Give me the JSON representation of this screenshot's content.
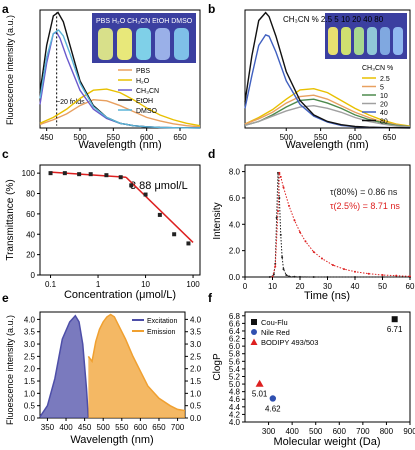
{
  "panels": {
    "a": {
      "letter": "a",
      "ylabel": "Fluoescence intensity (a.u.)",
      "xlabel": "Wavelength (nm)",
      "xticks": [
        "450",
        "500",
        "550",
        "600",
        "650"
      ],
      "inset": "PBS H₂O CH₃CN EtOH DMSO",
      "annotation": "~20 folds"
    },
    "b": {
      "letter": "b",
      "xlabel": "Wavelength (nm)",
      "xticks": [
        "500",
        "550",
        "600",
        "650"
      ],
      "inset": "CH₃CN %  2.5  5  10  20  40  80",
      "legend_title": "CH₃CN %"
    },
    "c": {
      "letter": "c",
      "ylabel": "Transmittance (%)",
      "xlabel": "Concentration (μmol/L)",
      "yticks": [
        "0",
        "20",
        "40",
        "60",
        "80",
        "100"
      ],
      "xticks": [
        "0.1",
        "1",
        "10",
        "100"
      ],
      "annotation": "3.88 μmol/L"
    },
    "d": {
      "letter": "d",
      "ylabel": "Intensity",
      "xlabel": "Time (ns)",
      "yticks": [
        "0.0",
        "2.0",
        "4.0",
        "6.0",
        "8.0"
      ],
      "xticks": [
        "0",
        "10",
        "20",
        "30",
        "40",
        "50",
        "60"
      ],
      "ann1": "τ(80%) = 0.86 ns",
      "ann2": "τ(2.5%) = 8.71 ns"
    },
    "e": {
      "letter": "e",
      "ylabel": "Fluoescence intensity (a.u.)",
      "xlabel": "Wavelength (nm)",
      "yticks": [
        "0.0",
        "0.5",
        "1.0",
        "1.5",
        "2.0",
        "2.5",
        "3.0",
        "3.5",
        "4.0"
      ],
      "xticks": [
        "350",
        "400",
        "450",
        "500",
        "550",
        "600",
        "650",
        "700"
      ]
    },
    "f": {
      "letter": "f",
      "ylabel": "ClogP",
      "xlabel": "Molecular weight (Da)",
      "yticks": [
        "4.0",
        "4.2",
        "4.4",
        "4.6",
        "4.8",
        "5.0",
        "5.2",
        "5.4",
        "5.6",
        "5.8",
        "6.0",
        "6.2",
        "6.4",
        "6.6",
        "6.8"
      ],
      "xticks": [
        "300",
        "400",
        "500",
        "600",
        "700",
        "800",
        "900"
      ]
    }
  },
  "chart_data": [
    {
      "panel": "a",
      "type": "line",
      "xlim": [
        440,
        680
      ],
      "ylim": [
        0,
        10
      ],
      "series": [
        {
          "name": "PBS",
          "color": "#e8a060",
          "x": [
            440,
            460,
            480,
            500,
            520,
            540,
            560,
            580,
            600,
            620,
            640,
            660,
            680
          ],
          "y": [
            0.3,
            0.7,
            1.2,
            1.9,
            2.4,
            2.3,
            1.9,
            1.4,
            0.9,
            0.6,
            0.35,
            0.2,
            0.1
          ]
        },
        {
          "name": "H₂O",
          "color": "#e8c000",
          "x": [
            440,
            460,
            480,
            500,
            520,
            540,
            560,
            580,
            600,
            620,
            640,
            660,
            680
          ],
          "y": [
            0.4,
            0.9,
            1.6,
            2.5,
            3.2,
            3.3,
            3.0,
            2.4,
            1.7,
            1.1,
            0.7,
            0.4,
            0.2
          ]
        },
        {
          "name": "CH₃CN",
          "color": "#6a5acd",
          "x": [
            440,
            450,
            460,
            465,
            470,
            480,
            500,
            520,
            540,
            560,
            580,
            600,
            620,
            640,
            660,
            680
          ],
          "y": [
            2.0,
            5.5,
            8.0,
            8.1,
            7.6,
            6.0,
            3.2,
            1.6,
            0.8,
            0.4,
            0.2,
            0.1,
            0.05,
            0.03,
            0.02,
            0.01
          ]
        },
        {
          "name": "EtOH",
          "color": "#111111",
          "x": [
            440,
            450,
            460,
            467,
            475,
            485,
            500,
            520,
            540,
            560,
            580,
            600,
            620,
            640,
            660,
            680
          ],
          "y": [
            3.0,
            7.0,
            9.5,
            9.8,
            9.0,
            7.0,
            4.0,
            1.9,
            0.9,
            0.4,
            0.2,
            0.1,
            0.05,
            0.03,
            0.02,
            0.01
          ]
        },
        {
          "name": "DMSO",
          "color": "#5ab4d8",
          "x": [
            440,
            450,
            460,
            468,
            475,
            485,
            500,
            520,
            540,
            560,
            580,
            600,
            620,
            640,
            660,
            680
          ],
          "y": [
            2.5,
            6.0,
            8.0,
            8.3,
            7.8,
            6.3,
            3.8,
            1.8,
            0.9,
            0.4,
            0.2,
            0.1,
            0.05,
            0.03,
            0.02,
            0.01
          ]
        }
      ]
    },
    {
      "panel": "b",
      "type": "line",
      "xlim": [
        440,
        680
      ],
      "ylim": [
        0,
        9
      ],
      "series": [
        {
          "name": "2.5",
          "color": "#e8c000",
          "x": [
            440,
            460,
            480,
            500,
            520,
            540,
            560,
            580,
            600,
            620,
            640,
            660,
            680
          ],
          "y": [
            0.3,
            0.8,
            1.4,
            2.2,
            2.9,
            3.0,
            2.7,
            2.1,
            1.5,
            1.0,
            0.6,
            0.3,
            0.15
          ]
        },
        {
          "name": "5",
          "color": "#e8a060",
          "x": [
            440,
            460,
            480,
            500,
            520,
            540,
            560,
            580,
            600,
            620,
            640,
            660,
            680
          ],
          "y": [
            0.3,
            0.7,
            1.2,
            1.9,
            2.4,
            2.5,
            2.2,
            1.7,
            1.2,
            0.8,
            0.45,
            0.25,
            0.1
          ]
        },
        {
          "name": "10",
          "color": "#4d8a4d",
          "x": [
            440,
            460,
            480,
            500,
            520,
            540,
            560,
            580,
            600,
            620,
            640,
            660,
            680
          ],
          "y": [
            0.2,
            0.5,
            1.0,
            1.6,
            2.1,
            2.2,
            1.9,
            1.5,
            1.0,
            0.65,
            0.4,
            0.2,
            0.1
          ]
        },
        {
          "name": "20",
          "color": "#a0a0a0",
          "x": [
            440,
            460,
            480,
            500,
            520,
            540,
            560,
            580,
            600,
            620,
            640,
            660,
            680
          ],
          "y": [
            0.2,
            0.5,
            0.9,
            1.3,
            1.6,
            1.7,
            1.5,
            1.2,
            0.8,
            0.5,
            0.3,
            0.15,
            0.08
          ]
        },
        {
          "name": "40",
          "color": "#4060c0",
          "x": [
            440,
            450,
            460,
            470,
            475,
            485,
            500,
            520,
            540,
            560,
            580,
            600,
            620,
            640,
            660,
            680
          ],
          "y": [
            1.5,
            4.0,
            6.3,
            7.1,
            7.0,
            5.8,
            3.6,
            1.8,
            0.9,
            0.45,
            0.2,
            0.1,
            0.05,
            0.03,
            0.02,
            0.01
          ]
        },
        {
          "name": "80",
          "color": "#111111",
          "x": [
            440,
            450,
            460,
            470,
            475,
            485,
            500,
            520,
            540,
            560,
            580,
            600,
            620,
            640,
            660,
            680
          ],
          "y": [
            2.0,
            5.5,
            8.2,
            8.8,
            8.5,
            7.0,
            4.3,
            2.1,
            1.0,
            0.5,
            0.25,
            0.12,
            0.06,
            0.03,
            0.02,
            0.01
          ]
        }
      ]
    },
    {
      "panel": "c",
      "type": "scatter",
      "xscale": "log",
      "xlim": [
        0.06,
        140
      ],
      "ylim": [
        0,
        108
      ],
      "series": [
        {
          "name": "data",
          "color": "#222222",
          "x": [
            0.1,
            0.2,
            0.4,
            0.7,
            1.5,
            3.0,
            5.0,
            10,
            20,
            40,
            80
          ],
          "y": [
            100,
            100,
            99,
            99,
            98,
            96,
            88,
            79,
            59,
            40,
            31
          ]
        }
      ],
      "fit_lines": [
        {
          "x": [
            0.1,
            3.88
          ],
          "y": [
            101,
            96
          ]
        },
        {
          "x": [
            3.88,
            100
          ],
          "y": [
            96,
            32
          ]
        }
      ]
    },
    {
      "panel": "d",
      "type": "scatter",
      "xlim": [
        0,
        60
      ],
      "ylim": [
        0,
        8.5
      ],
      "series": [
        {
          "name": "80%",
          "color": "#222222",
          "x": [
            9,
            10,
            10.5,
            11,
            11.5,
            12,
            12.5,
            13,
            13.5,
            14,
            15,
            16,
            18,
            20,
            25,
            30,
            40,
            50,
            60
          ],
          "y": [
            0,
            0.05,
            0.2,
            1.0,
            4.5,
            7.9,
            6.0,
            3.2,
            1.5,
            0.6,
            0.15,
            0.05,
            0.02,
            0.01,
            0,
            0,
            0,
            0,
            0
          ]
        },
        {
          "name": "2.5%",
          "color": "#dd2020",
          "x": [
            10,
            11,
            12,
            12.5,
            13,
            14,
            16,
            18,
            20,
            22,
            25,
            28,
            32,
            36,
            40,
            45,
            50,
            55,
            60
          ],
          "y": [
            0,
            0.8,
            5.0,
            7.9,
            7.6,
            6.8,
            5.4,
            4.3,
            3.4,
            2.7,
            1.9,
            1.4,
            0.9,
            0.6,
            0.4,
            0.25,
            0.15,
            0.1,
            0.05
          ]
        }
      ]
    },
    {
      "panel": "e",
      "type": "area",
      "xlim": [
        330,
        720
      ],
      "ylim": [
        0,
        4.3
      ],
      "series": [
        {
          "name": "Excitation",
          "color": "#4d4ea8",
          "x": [
            330,
            350,
            370,
            390,
            410,
            425,
            435,
            445,
            455,
            460
          ],
          "y": [
            0.05,
            0.5,
            1.6,
            3.2,
            3.9,
            4.15,
            3.9,
            3.0,
            1.2,
            0.0
          ]
        },
        {
          "name": "Emission",
          "color": "#f0a030",
          "x": [
            460,
            470,
            480,
            490,
            500,
            510,
            520,
            530,
            540,
            560,
            580,
            600,
            620,
            650,
            680,
            700,
            720
          ],
          "y": [
            2.5,
            2.3,
            3.1,
            3.6,
            3.9,
            4.1,
            4.2,
            4.1,
            3.8,
            3.2,
            2.5,
            1.9,
            1.3,
            0.8,
            0.5,
            0.35,
            0.3
          ]
        }
      ]
    },
    {
      "panel": "f",
      "type": "scatter",
      "xlim": [
        200,
        900
      ],
      "ylim": [
        4.0,
        6.9
      ],
      "series": [
        {
          "name": "Cou-Flu",
          "color": "#111111",
          "marker": "square",
          "x": [
            835
          ],
          "y": [
            6.71
          ],
          "labels": [
            "6.71"
          ]
        },
        {
          "name": "Nile Red",
          "color": "#3050b0",
          "marker": "circle",
          "x": [
            318
          ],
          "y": [
            4.62
          ],
          "labels": [
            "4.62"
          ]
        },
        {
          "name": "BODIPY 493/503",
          "color": "#dd2020",
          "marker": "triangle",
          "x": [
            262
          ],
          "y": [
            5.01
          ],
          "labels": [
            "5.01"
          ]
        }
      ]
    }
  ]
}
